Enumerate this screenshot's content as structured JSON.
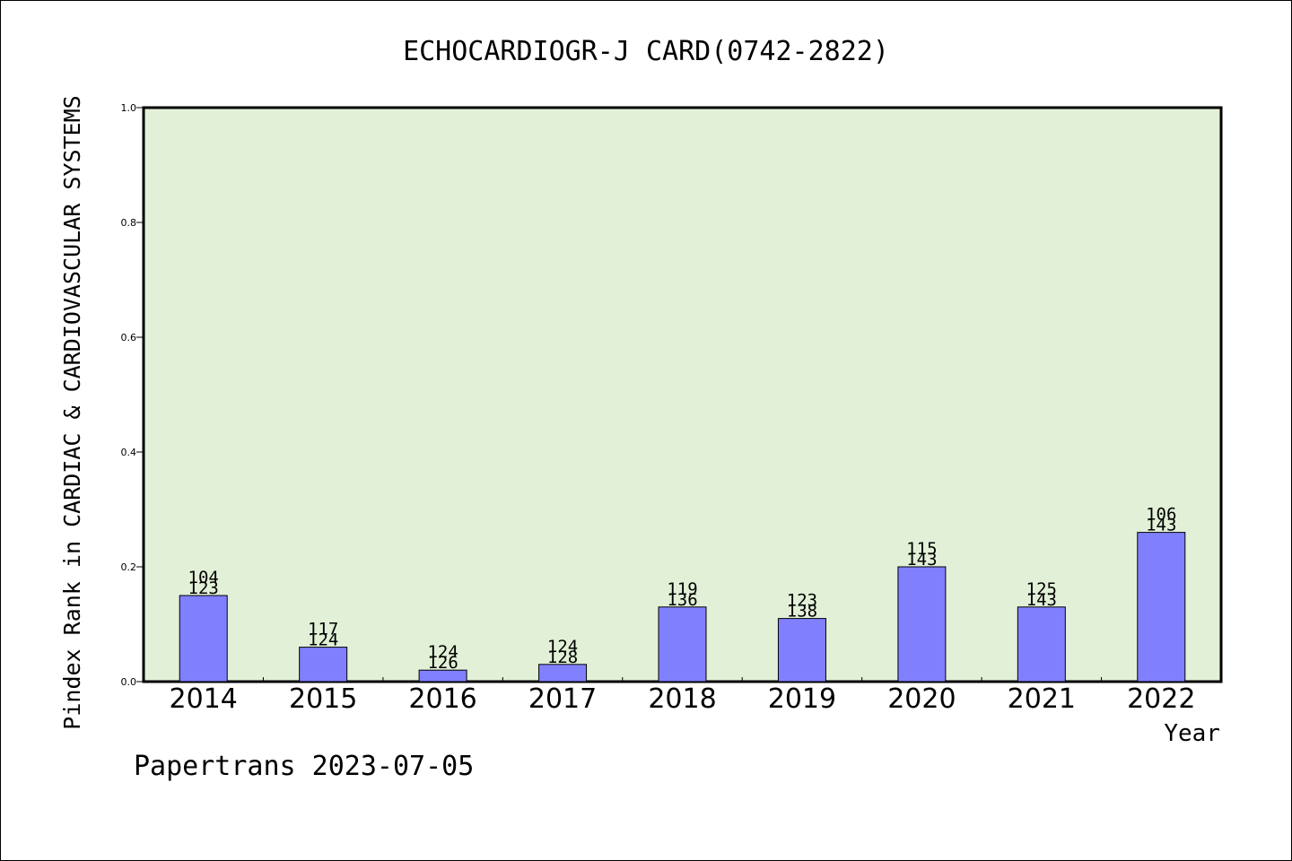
{
  "chart_data": {
    "type": "bar",
    "title": "ECHOCARDIOGR-J CARD(0742-2822)",
    "xlabel": "Year",
    "ylabel": "Pindex Rank in CARDIAC & CARDIOVASCULAR SYSTEMS",
    "categories": [
      "2014",
      "2015",
      "2016",
      "2017",
      "2018",
      "2019",
      "2020",
      "2021",
      "2022"
    ],
    "values": [
      0.15,
      0.06,
      0.02,
      0.03,
      0.13,
      0.11,
      0.2,
      0.13,
      0.26
    ],
    "rank_labels": [
      "104",
      "117",
      "124",
      "124",
      "119",
      "123",
      "115",
      "125",
      "106"
    ],
    "total_labels": [
      "123",
      "124",
      "126",
      "128",
      "136",
      "138",
      "143",
      "143",
      "143"
    ],
    "ylim": [
      0,
      1.0
    ],
    "yticks": [
      "0.0",
      "0.2",
      "0.4",
      "0.6",
      "0.8",
      "1.0"
    ],
    "grid": false,
    "colors": {
      "bar": "#8080ff",
      "plot_bg": "#e2f0d7",
      "axis": "#000000"
    }
  },
  "footer": "Papertrans 2023-07-05"
}
